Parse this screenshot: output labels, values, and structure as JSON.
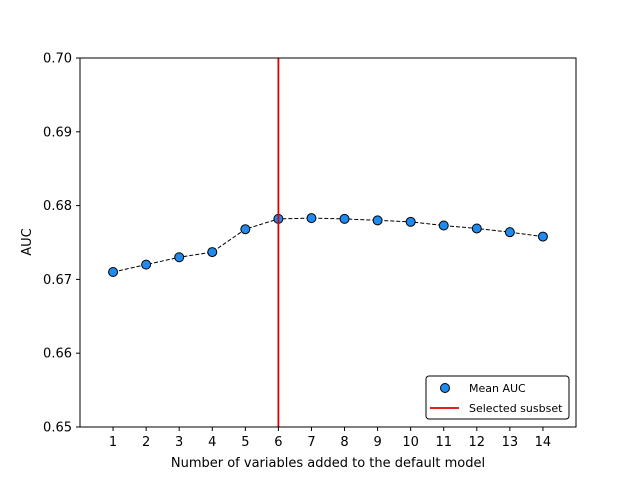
{
  "chart_data": {
    "type": "line",
    "title": "",
    "xlabel": "Number of variables added to the default model",
    "ylabel": "AUC",
    "x": [
      1,
      2,
      3,
      4,
      5,
      6,
      7,
      8,
      9,
      10,
      11,
      12,
      13,
      14
    ],
    "xlim": [
      0,
      15
    ],
    "ylim": [
      0.65,
      0.7
    ],
    "yticks": [
      "0.65",
      "0.66",
      "0.67",
      "0.68",
      "0.69",
      "0.70"
    ],
    "series": [
      {
        "name": "Mean AUC",
        "values": [
          0.671,
          0.672,
          0.673,
          0.6737,
          0.6768,
          0.6782,
          0.6783,
          0.6782,
          0.678,
          0.6778,
          0.6773,
          0.6769,
          0.6764,
          0.6758
        ],
        "marker_color": "#1f8bf0",
        "line_color": "#000000",
        "line_style": "dashed"
      }
    ],
    "vline": {
      "name": "Selected susbset",
      "x": 6,
      "color": "#e00000"
    },
    "grid": false,
    "legend_position": "lower-right"
  }
}
